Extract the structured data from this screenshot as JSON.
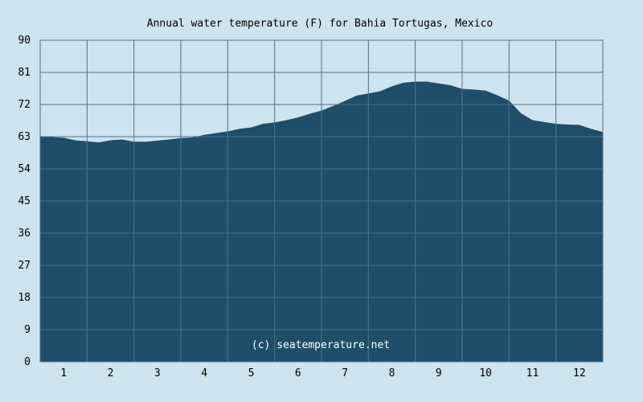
{
  "chart_data": {
    "type": "area",
    "title": "Annual water temperature (F) for Bahia Tortugas, Mexico",
    "watermark": "(c) seatemperature.net",
    "xlabel": "",
    "ylabel": "",
    "x_ticks": [
      "1",
      "2",
      "3",
      "4",
      "5",
      "6",
      "7",
      "8",
      "9",
      "10",
      "11",
      "12"
    ],
    "y_ticks": [
      "0",
      "9",
      "18",
      "27",
      "36",
      "45",
      "54",
      "63",
      "72",
      "81",
      "90"
    ],
    "ylim": [
      0,
      90
    ],
    "xlim": [
      0.5,
      12.5
    ],
    "grid": true,
    "colors": {
      "background": "#cde3ee",
      "plot_background": "#cde3ee",
      "fill": "#1f4e6a",
      "grid": "#4f7189"
    },
    "series": [
      {
        "x": [
          0.5,
          0.75,
          1.0,
          1.25,
          1.5,
          1.75,
          2.0,
          2.25,
          2.5,
          2.75,
          3.0,
          3.25,
          3.5,
          3.75,
          4.0,
          4.25,
          4.5,
          4.75,
          5.0,
          5.25,
          5.5,
          5.75,
          6.0,
          6.25,
          6.5,
          6.75,
          7.0,
          7.25,
          7.5,
          7.75,
          8.0,
          8.25,
          8.5,
          8.75,
          9.0,
          9.25,
          9.5,
          9.75,
          10.0,
          10.25,
          10.5,
          10.75,
          11.0,
          11.25,
          11.5,
          11.75,
          12.0,
          12.25,
          12.5
        ],
        "values": [
          62.9,
          62.9,
          62.7,
          62.0,
          61.7,
          61.4,
          62.0,
          62.2,
          61.6,
          61.6,
          61.9,
          62.2,
          62.6,
          62.8,
          63.5,
          64.0,
          64.5,
          65.2,
          65.6,
          66.6,
          67.0,
          67.6,
          68.4,
          69.4,
          70.3,
          71.6,
          73.0,
          74.5,
          75.1,
          75.7,
          77.1,
          78.1,
          78.4,
          78.4,
          77.9,
          77.4,
          76.4,
          76.2,
          75.9,
          74.6,
          73.1,
          69.6,
          67.6,
          67.1,
          66.6,
          66.4,
          66.3,
          65.2,
          64.3
        ]
      }
    ]
  }
}
